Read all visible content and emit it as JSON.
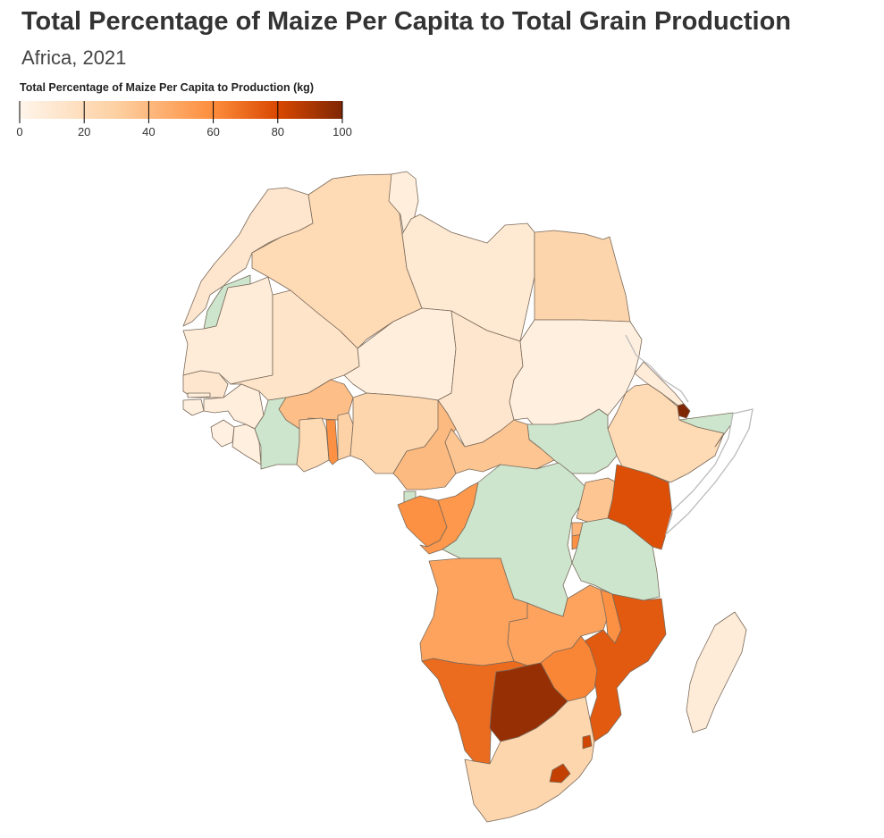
{
  "header": {
    "title": "Total Percentage of Maize Per Capita to Total Grain Production",
    "subtitle": "Africa, 2021"
  },
  "legend": {
    "title": "Total Percentage of Maize Per Capita to Production (kg)",
    "ticks": [
      "0",
      "20",
      "40",
      "60",
      "80",
      "100"
    ],
    "domain": [
      0,
      100
    ],
    "colors": [
      "#fff5eb",
      "#fdd0a2",
      "#fd8d3c",
      "#d94801",
      "#7f2704"
    ]
  },
  "style": {
    "no_data_color": "#cce5cc",
    "border_color": "#7a6a5a"
  },
  "chart_data": {
    "type": "choropleth",
    "region": "Africa",
    "year": 2021,
    "scale": "sequential orange",
    "domain": [
      0,
      100
    ],
    "no_data": [
      "Western Sahara",
      "Côte d'Ivoire",
      "South Sudan",
      "Somalia",
      "DR Congo",
      "Tanzania",
      "Equatorial Guinea"
    ],
    "values": {
      "Morocco": 12,
      "Algeria": 22,
      "Tunisia": 6,
      "Libya": 10,
      "Egypt": 26,
      "Mauritania": 8,
      "Mali": 14,
      "Niger": 6,
      "Chad": 12,
      "Sudan": 5,
      "Eritrea": 8,
      "Ethiopia": 22,
      "Djibouti": 100,
      "Senegal": 12,
      "Gambia": 6,
      "Guinea-Bissau": 5,
      "Guinea": 6,
      "Sierra Leone": 4,
      "Liberia": 5,
      "Burkina Faso": 38,
      "Ghana": 22,
      "Togo": 58,
      "Benin": 28,
      "Nigeria": 25,
      "Cameroon": 40,
      "Central African Republic": 35,
      "Gabon": 58,
      "Congo": 55,
      "Uganda": 35,
      "Kenya": 78,
      "Rwanda": 42,
      "Burundi": 58,
      "Angola": 50,
      "Zambia": 50,
      "Malawi": 58,
      "Mozambique": 75,
      "Zimbabwe": 62,
      "Namibia": 70,
      "Botswana": 95,
      "South Africa": 25,
      "Lesotho": 85,
      "Eswatini": 82,
      "Madagascar": 8
    }
  }
}
